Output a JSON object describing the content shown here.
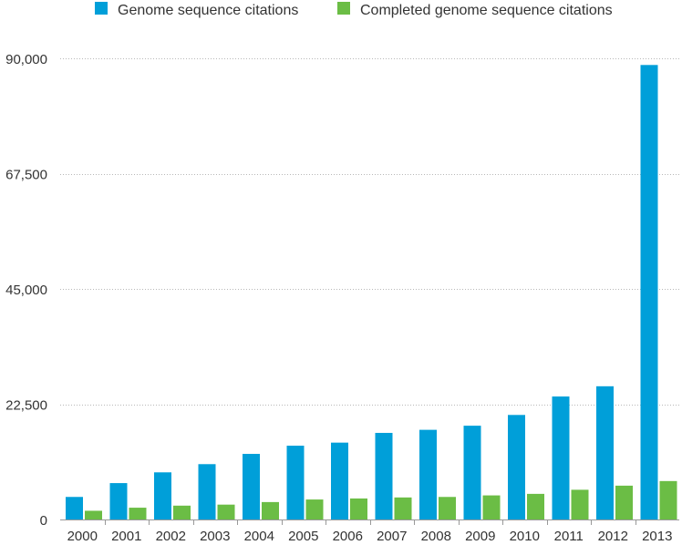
{
  "chart_data": {
    "type": "bar",
    "title": "",
    "xlabel": "",
    "ylabel": "",
    "categories": [
      "2000",
      "2001",
      "2002",
      "2003",
      "2004",
      "2005",
      "2006",
      "2007",
      "2008",
      "2009",
      "2010",
      "2011",
      "2012",
      "2013"
    ],
    "series": [
      {
        "name": "Genome sequence citations",
        "color": "#009fd9",
        "values": [
          4400,
          7100,
          9200,
          10800,
          12800,
          14400,
          15000,
          16900,
          17500,
          18300,
          20400,
          24000,
          26000,
          88700
        ]
      },
      {
        "name": "Completed genome sequence citations",
        "color": "#6bbd45",
        "values": [
          1700,
          2300,
          2700,
          2900,
          3400,
          3900,
          4100,
          4300,
          4400,
          4700,
          5000,
          5800,
          6600,
          7500
        ]
      }
    ],
    "ylim": [
      0,
      90000
    ],
    "yticks": [
      0,
      22500,
      45000,
      67500,
      90000
    ],
    "ytick_labels": [
      "0",
      "22,500",
      "45,000",
      "67,500",
      "90,000"
    ],
    "grid": true,
    "legend_position": "top"
  }
}
